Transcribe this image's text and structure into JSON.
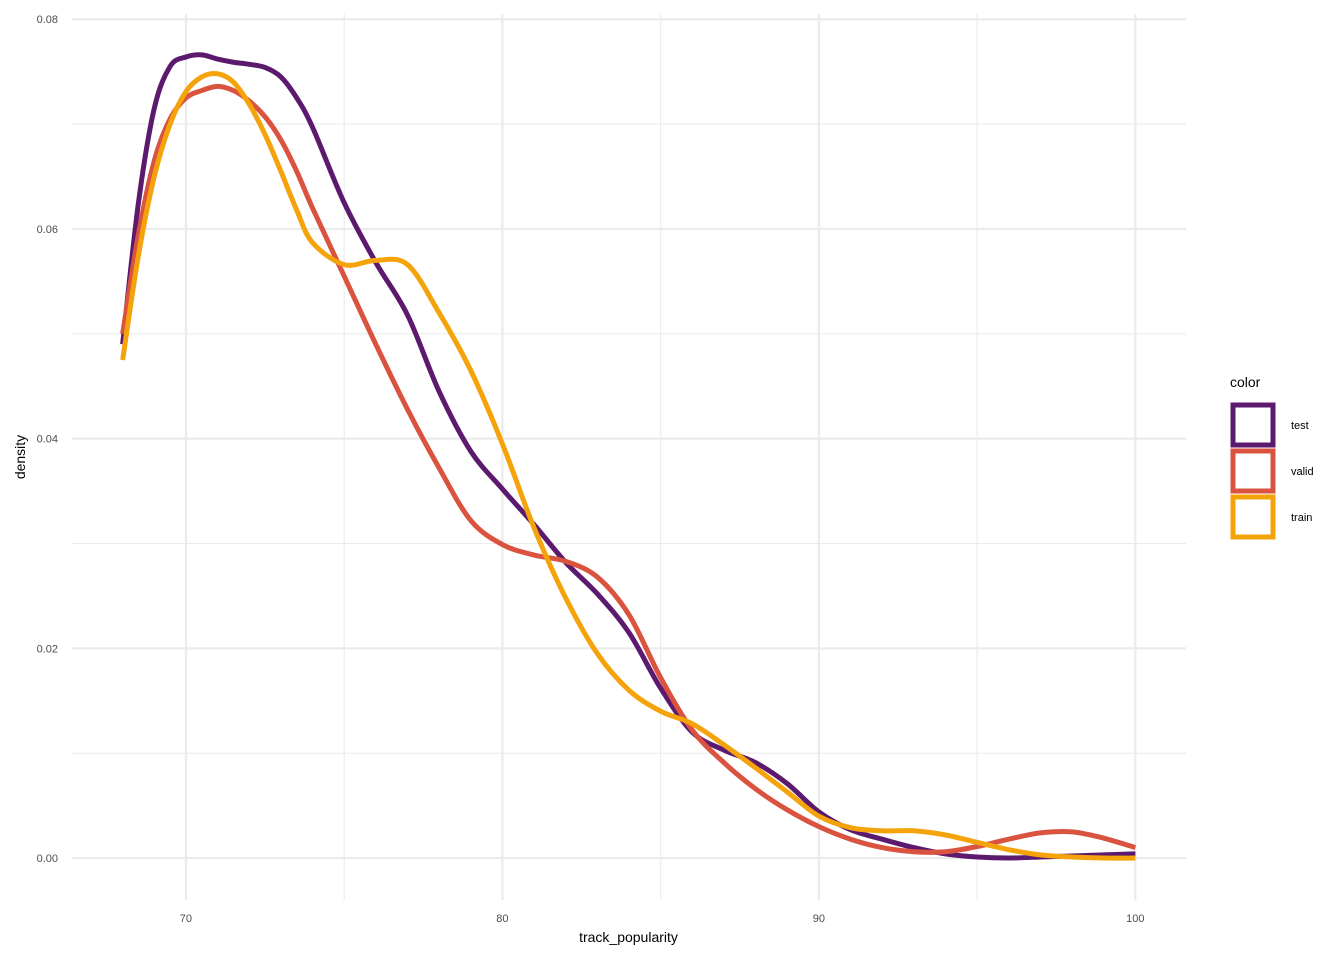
{
  "chart_data": {
    "type": "line",
    "title": "",
    "xlabel": "track_popularity",
    "ylabel": "density",
    "xlim": [
      66.4,
      101.6
    ],
    "ylim": [
      -0.004,
      0.0805
    ],
    "x_ticks": [
      70,
      80,
      90,
      100
    ],
    "x_tick_labels": [
      "70",
      "80",
      "90",
      "100"
    ],
    "x_minor_ticks": [
      75,
      85,
      95
    ],
    "y_ticks": [
      0,
      0.02,
      0.04,
      0.06,
      0.08
    ],
    "y_tick_labels": [
      "0.00",
      "0.02",
      "0.04",
      "0.06",
      "0.08"
    ],
    "y_minor_ticks": [
      0.01,
      0.03,
      0.05,
      0.07
    ],
    "grid": true,
    "legend": {
      "title": "color",
      "position": "right"
    },
    "series": [
      {
        "name": "test",
        "color": "#5c1a6e",
        "x": [
          68,
          68.5,
          69,
          69.5,
          70,
          70.5,
          71,
          71.5,
          72,
          72.5,
          73,
          73.5,
          74,
          75,
          76,
          77,
          78,
          79,
          80,
          81,
          82,
          83,
          84,
          85,
          86,
          87,
          88,
          89,
          90,
          91,
          92,
          93,
          94,
          95,
          96,
          97,
          98,
          99,
          100
        ],
        "y": [
          0.049,
          0.0625,
          0.0715,
          0.0755,
          0.0764,
          0.0766,
          0.0762,
          0.0759,
          0.0757,
          0.0754,
          0.0745,
          0.0725,
          0.0697,
          0.0625,
          0.0568,
          0.0518,
          0.0445,
          0.0388,
          0.0352,
          0.0318,
          0.0282,
          0.0252,
          0.0215,
          0.0162,
          0.012,
          0.0103,
          0.0091,
          0.0071,
          0.0044,
          0.0027,
          0.0018,
          0.001,
          0.0004,
          0.0001,
          0.0,
          0.0001,
          0.0002,
          0.0003,
          0.0004
        ]
      },
      {
        "name": "valid",
        "color": "#d9533f",
        "x": [
          68,
          68.5,
          69,
          69.5,
          70,
          70.5,
          71,
          71.5,
          72,
          72.5,
          73,
          73.5,
          74,
          75,
          76,
          77,
          78,
          79,
          80,
          81,
          82,
          83,
          84,
          85,
          86,
          87,
          88,
          89,
          90,
          91,
          92,
          93,
          94,
          95,
          96,
          97,
          98,
          99,
          100
        ],
        "y": [
          0.05,
          0.0595,
          0.0665,
          0.0705,
          0.0725,
          0.0732,
          0.0736,
          0.0732,
          0.0722,
          0.0707,
          0.0685,
          0.0655,
          0.062,
          0.0555,
          0.049,
          0.0428,
          0.0372,
          0.0322,
          0.0299,
          0.0289,
          0.0283,
          0.0268,
          0.0232,
          0.0172,
          0.0122,
          0.0091,
          0.0066,
          0.0046,
          0.003,
          0.0018,
          0.001,
          0.0006,
          0.0006,
          0.0011,
          0.0018,
          0.0024,
          0.0025,
          0.0019,
          0.001
        ]
      },
      {
        "name": "train",
        "color": "#f5a30b",
        "x": [
          68,
          68.5,
          69,
          69.5,
          70,
          70.5,
          71,
          71.5,
          72,
          72.5,
          73,
          73.5,
          74,
          75,
          76,
          77,
          78,
          79,
          80,
          81,
          82,
          83,
          84,
          85,
          86,
          87,
          88,
          89,
          90,
          91,
          92,
          93,
          94,
          95,
          96,
          97,
          98,
          99,
          100
        ],
        "y": [
          0.0475,
          0.0575,
          0.065,
          0.07,
          0.0731,
          0.0745,
          0.0748,
          0.074,
          0.0719,
          0.069,
          0.0655,
          0.0618,
          0.0587,
          0.0566,
          0.057,
          0.0566,
          0.052,
          0.0465,
          0.0395,
          0.0315,
          0.0248,
          0.0195,
          0.016,
          0.014,
          0.0128,
          0.0108,
          0.0086,
          0.0063,
          0.004,
          0.0029,
          0.0026,
          0.0026,
          0.0022,
          0.0015,
          0.0008,
          0.0003,
          0.0001,
          0.0,
          0.0
        ]
      }
    ]
  }
}
